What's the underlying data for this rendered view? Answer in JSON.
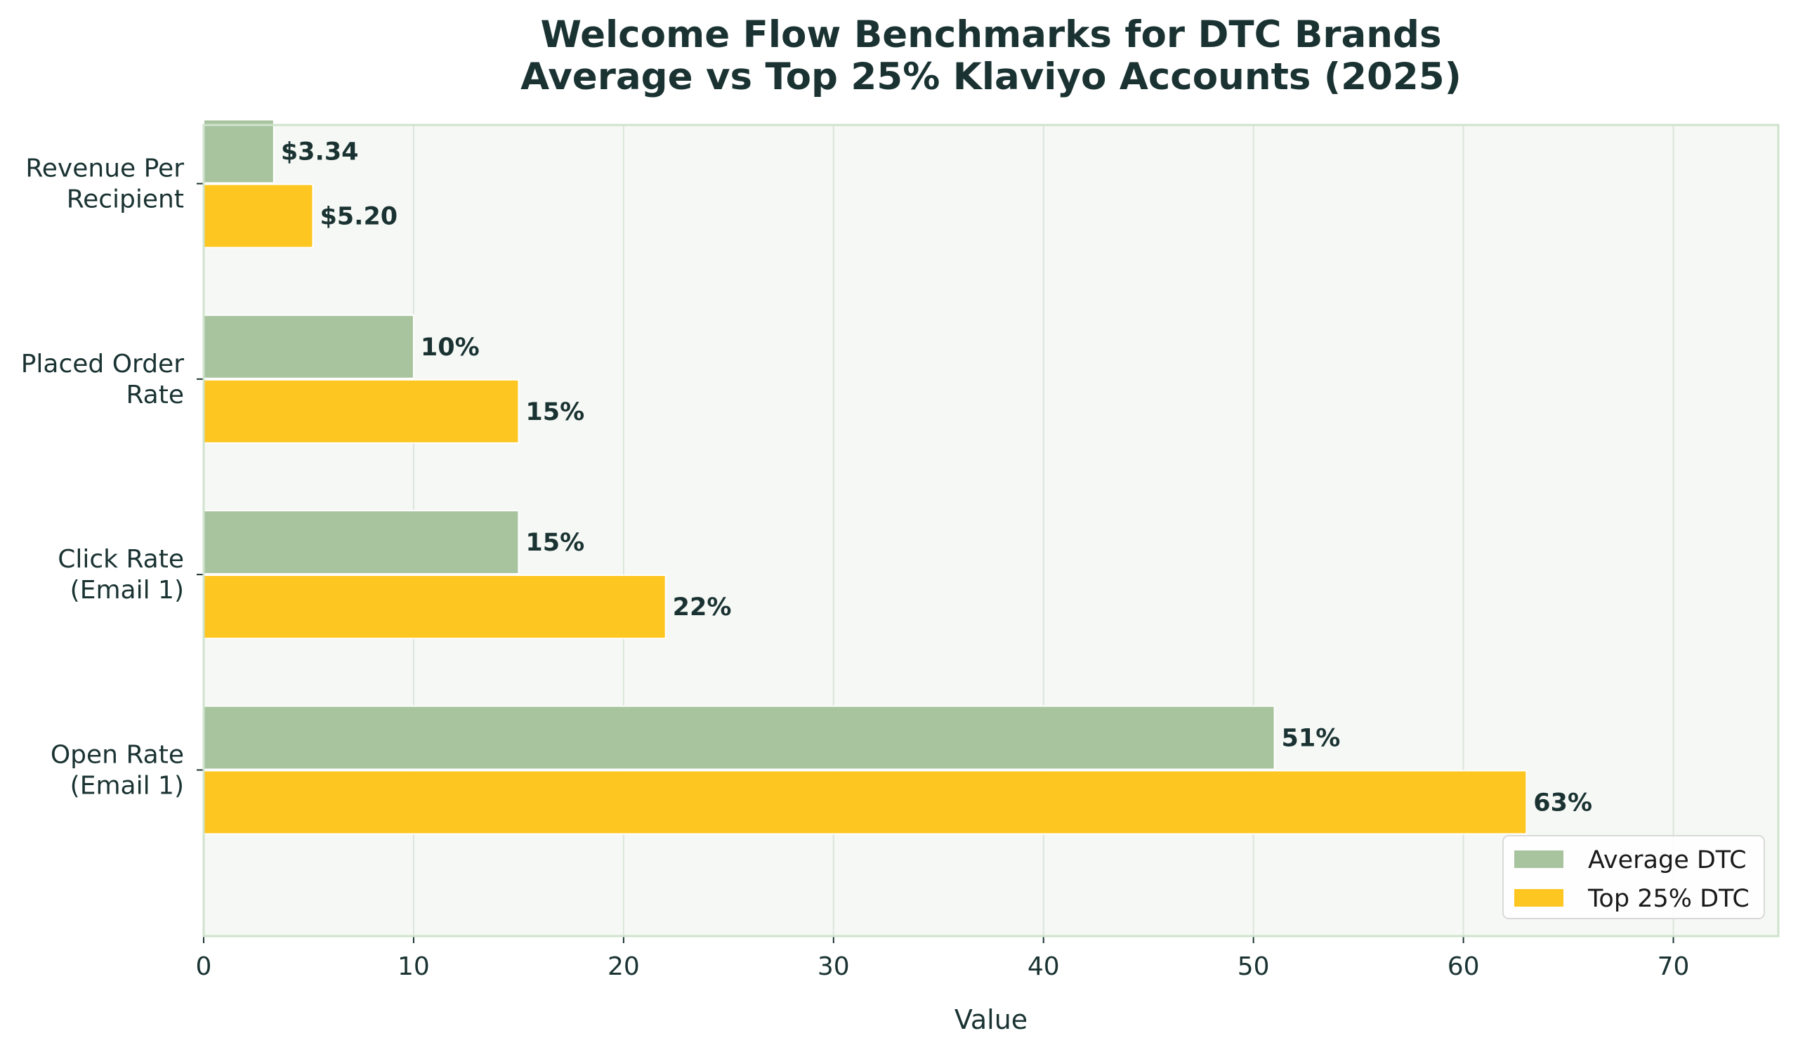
{
  "chart_data": {
    "type": "bar",
    "orientation": "horizontal",
    "title": "Welcome Flow Benchmarks for DTC Brands",
    "subtitle": "Average vs Top 25% Klaviyo Accounts (2025)",
    "xlabel": "Value",
    "ylabel": "",
    "xlim": [
      0,
      75
    ],
    "xticks": [
      0,
      10,
      20,
      30,
      40,
      50,
      60,
      70
    ],
    "grid": "vertical",
    "legend_position": "bottom-right",
    "categories": [
      "Open Rate\n(Email 1)",
      "Click Rate\n(Email 1)",
      "Placed Order\nRate",
      "Revenue Per\nRecipient"
    ],
    "series": [
      {
        "name": "Average DTC",
        "color": "#a8c49f",
        "values": [
          51,
          15,
          10,
          3.34
        ],
        "labels": [
          "51%",
          "15%",
          "10%",
          "$3.34"
        ]
      },
      {
        "name": "Top 25% DTC",
        "color": "#fec620",
        "values": [
          63,
          22,
          15,
          5.2
        ],
        "labels": [
          "63%",
          "22%",
          "15%",
          "$5.20"
        ]
      }
    ],
    "colors": {
      "plot_background": "#f6f8f5",
      "spine": "#cfe3cc",
      "grid": "#dbe5da",
      "text": "#1a3332"
    }
  }
}
